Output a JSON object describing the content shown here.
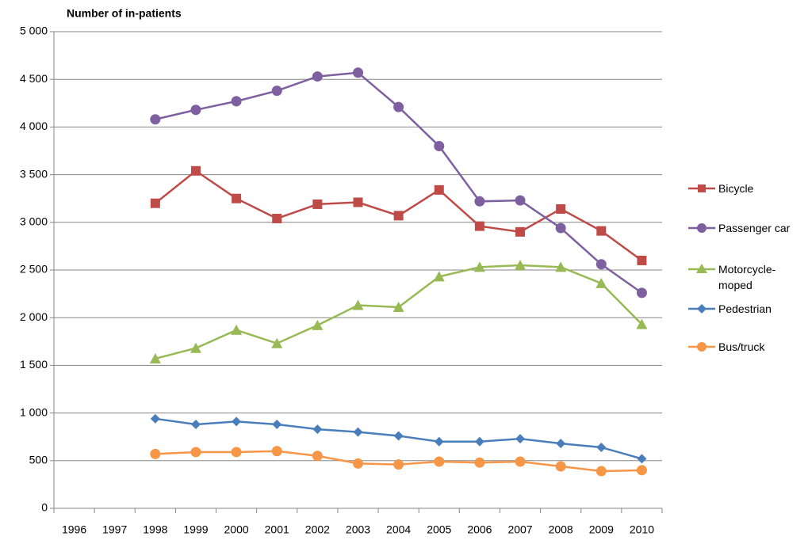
{
  "chart_data": {
    "type": "line",
    "y_axis_title": "Number of in-patients",
    "categories": [
      "1996",
      "1997",
      "1998",
      "1999",
      "2000",
      "2001",
      "2002",
      "2003",
      "2004",
      "2005",
      "2006",
      "2007",
      "2008",
      "2009",
      "2010"
    ],
    "ylim": [
      0,
      5000
    ],
    "yticks": [
      0,
      500,
      {
        "value": 1000,
        "label": "1 000"
      },
      {
        "value": 1500,
        "label": "1 500"
      },
      {
        "value": 2000,
        "label": "2 000"
      },
      {
        "value": 2500,
        "label": "2 500"
      },
      {
        "value": 3000,
        "label": "3 000"
      },
      {
        "value": 3500,
        "label": "3 500"
      },
      {
        "value": 4000,
        "label": "4 000"
      },
      {
        "value": 4500,
        "label": "4 500"
      },
      {
        "value": 5000,
        "label": "5 000"
      }
    ],
    "grid": true,
    "legend": "right",
    "series": [
      {
        "name": "Bicycle",
        "color": "#be4b48",
        "marker": "square",
        "values": [
          null,
          null,
          3200,
          3540,
          3250,
          3040,
          3190,
          3210,
          3070,
          3340,
          2960,
          2900,
          3140,
          2910,
          2600
        ]
      },
      {
        "name": "Passenger car",
        "color": "#7e5fa0",
        "marker": "circle",
        "values": [
          null,
          null,
          4080,
          4180,
          4270,
          4380,
          4530,
          4570,
          4210,
          3800,
          3220,
          3230,
          2940,
          2560,
          2260
        ]
      },
      {
        "name": "Motorcycle-moped",
        "color": "#98b954",
        "marker": "triangle",
        "values": [
          null,
          null,
          1570,
          1680,
          1870,
          1730,
          1920,
          2130,
          2110,
          2430,
          2530,
          2550,
          2530,
          2360,
          1930
        ]
      },
      {
        "name": "Pedestrian",
        "color": "#4a7ebb",
        "marker": "diamond",
        "values": [
          null,
          null,
          940,
          880,
          910,
          880,
          830,
          800,
          760,
          700,
          700,
          730,
          680,
          640,
          520
        ]
      },
      {
        "name": "Bus/truck",
        "color": "#f79646",
        "marker": "circle",
        "values": [
          null,
          null,
          570,
          590,
          590,
          600,
          550,
          470,
          460,
          490,
          480,
          490,
          440,
          390,
          400
        ]
      }
    ]
  }
}
